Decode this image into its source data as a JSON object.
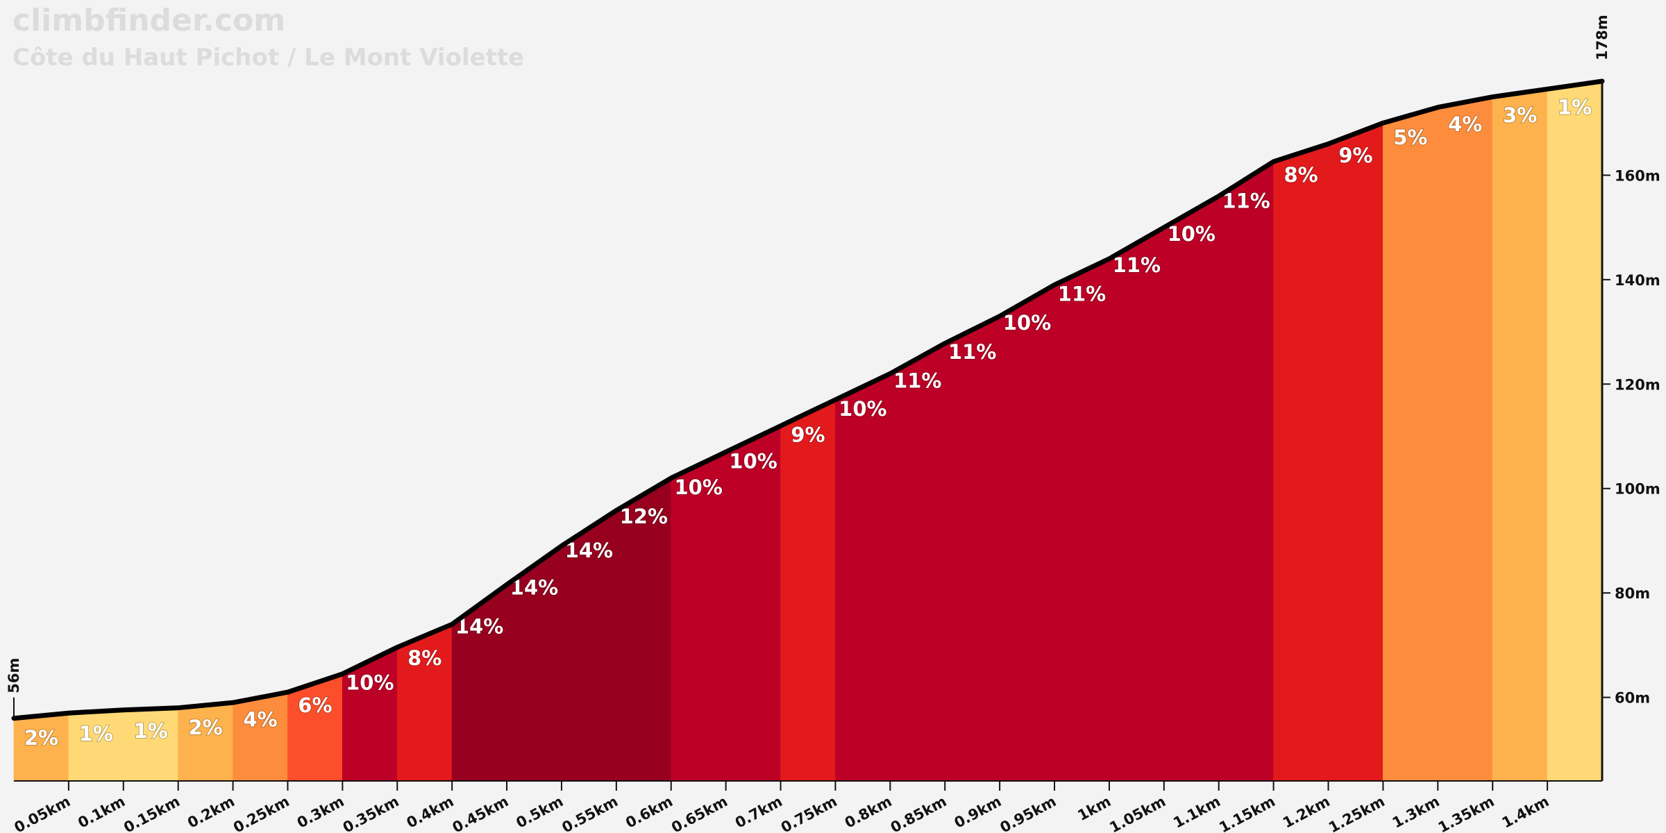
{
  "chart_data": {
    "type": "area",
    "title": "climbfinder.com",
    "subtitle": "Côte du Haut Pichot / Le Mont Violette",
    "x": [
      0,
      0.05,
      0.1,
      0.15,
      0.2,
      0.25,
      0.3,
      0.35,
      0.4,
      0.45,
      0.5,
      0.55,
      0.6,
      0.65,
      0.7,
      0.75,
      0.8,
      0.85,
      0.9,
      0.95,
      1.0,
      1.05,
      1.1,
      1.15,
      1.2,
      1.25,
      1.3,
      1.35,
      1.4,
      1.45
    ],
    "values": [
      56,
      57,
      57.6,
      58,
      59,
      61,
      64.5,
      69.6,
      74,
      81.6,
      89,
      95.8,
      102,
      107,
      112,
      117,
      122,
      127.8,
      133,
      139,
      144,
      150,
      156,
      162.6,
      166,
      170,
      173,
      175,
      176.5,
      178
    ],
    "start_label": "56m",
    "end_label": "178m",
    "grades": [
      2,
      1,
      1,
      2,
      4,
      6,
      10,
      8,
      14,
      14,
      14,
      12,
      10,
      10,
      9,
      10,
      11,
      11,
      10,
      11,
      11,
      10,
      11,
      8,
      9,
      5,
      4,
      3,
      1
    ],
    "grade_labels": [
      "2%",
      "1%",
      "1%",
      "2%",
      "4%",
      "6%",
      "10%",
      "8%",
      "14%",
      "14%",
      "14%",
      "12%",
      "10%",
      "10%",
      "9%",
      "10%",
      "11%",
      "11%",
      "10%",
      "11%",
      "11%",
      "10%",
      "11%",
      "8%",
      "9%",
      "5%",
      "4%",
      "3%",
      "1%"
    ],
    "grade_colors": [
      "#fdb24e",
      "#fed976",
      "#fed976",
      "#fdb24e",
      "#fd8d3c",
      "#fc4e2a",
      "#bd0026",
      "#e31a1c",
      "#97001f",
      "#97001f",
      "#97001f",
      "#97001f",
      "#bd0026",
      "#bd0026",
      "#e31a1c",
      "#bd0026",
      "#bd0026",
      "#bd0026",
      "#bd0026",
      "#bd0026",
      "#bd0026",
      "#bd0026",
      "#bd0026",
      "#e31a1c",
      "#e31a1c",
      "#fd8d3c",
      "#fd8d3c",
      "#fdb24e",
      "#fed976"
    ],
    "line_color": "#000000",
    "xlim": [
      0,
      1.45
    ],
    "ylim": [
      44,
      178
    ],
    "xticks": [
      {
        "value": 0.05,
        "label": "0.05km"
      },
      {
        "value": 0.1,
        "label": "0.1km"
      },
      {
        "value": 0.15,
        "label": "0.15km"
      },
      {
        "value": 0.2,
        "label": "0.2km"
      },
      {
        "value": 0.25,
        "label": "0.25km"
      },
      {
        "value": 0.3,
        "label": "0.3km"
      },
      {
        "value": 0.35,
        "label": "0.35km"
      },
      {
        "value": 0.4,
        "label": "0.4km"
      },
      {
        "value": 0.45,
        "label": "0.45km"
      },
      {
        "value": 0.5,
        "label": "0.5km"
      },
      {
        "value": 0.55,
        "label": "0.55km"
      },
      {
        "value": 0.6,
        "label": "0.6km"
      },
      {
        "value": 0.65,
        "label": "0.65km"
      },
      {
        "value": 0.7,
        "label": "0.7km"
      },
      {
        "value": 0.75,
        "label": "0.75km"
      },
      {
        "value": 0.8,
        "label": "0.8km"
      },
      {
        "value": 0.85,
        "label": "0.85km"
      },
      {
        "value": 0.9,
        "label": "0.9km"
      },
      {
        "value": 0.95,
        "label": "0.95km"
      },
      {
        "value": 1.0,
        "label": "1km"
      },
      {
        "value": 1.05,
        "label": "1.05km"
      },
      {
        "value": 1.1,
        "label": "1.1km"
      },
      {
        "value": 1.15,
        "label": "1.15km"
      },
      {
        "value": 1.2,
        "label": "1.2km"
      },
      {
        "value": 1.25,
        "label": "1.25km"
      },
      {
        "value": 1.3,
        "label": "1.3km"
      },
      {
        "value": 1.35,
        "label": "1.35km"
      },
      {
        "value": 1.4,
        "label": "1.4km"
      }
    ],
    "yticks": [
      {
        "value": 60,
        "label": "60m"
      },
      {
        "value": 80,
        "label": "80m"
      },
      {
        "value": 100,
        "label": "100m"
      },
      {
        "value": 120,
        "label": "120m"
      },
      {
        "value": 140,
        "label": "140m"
      },
      {
        "value": 160,
        "label": "160m"
      }
    ]
  }
}
